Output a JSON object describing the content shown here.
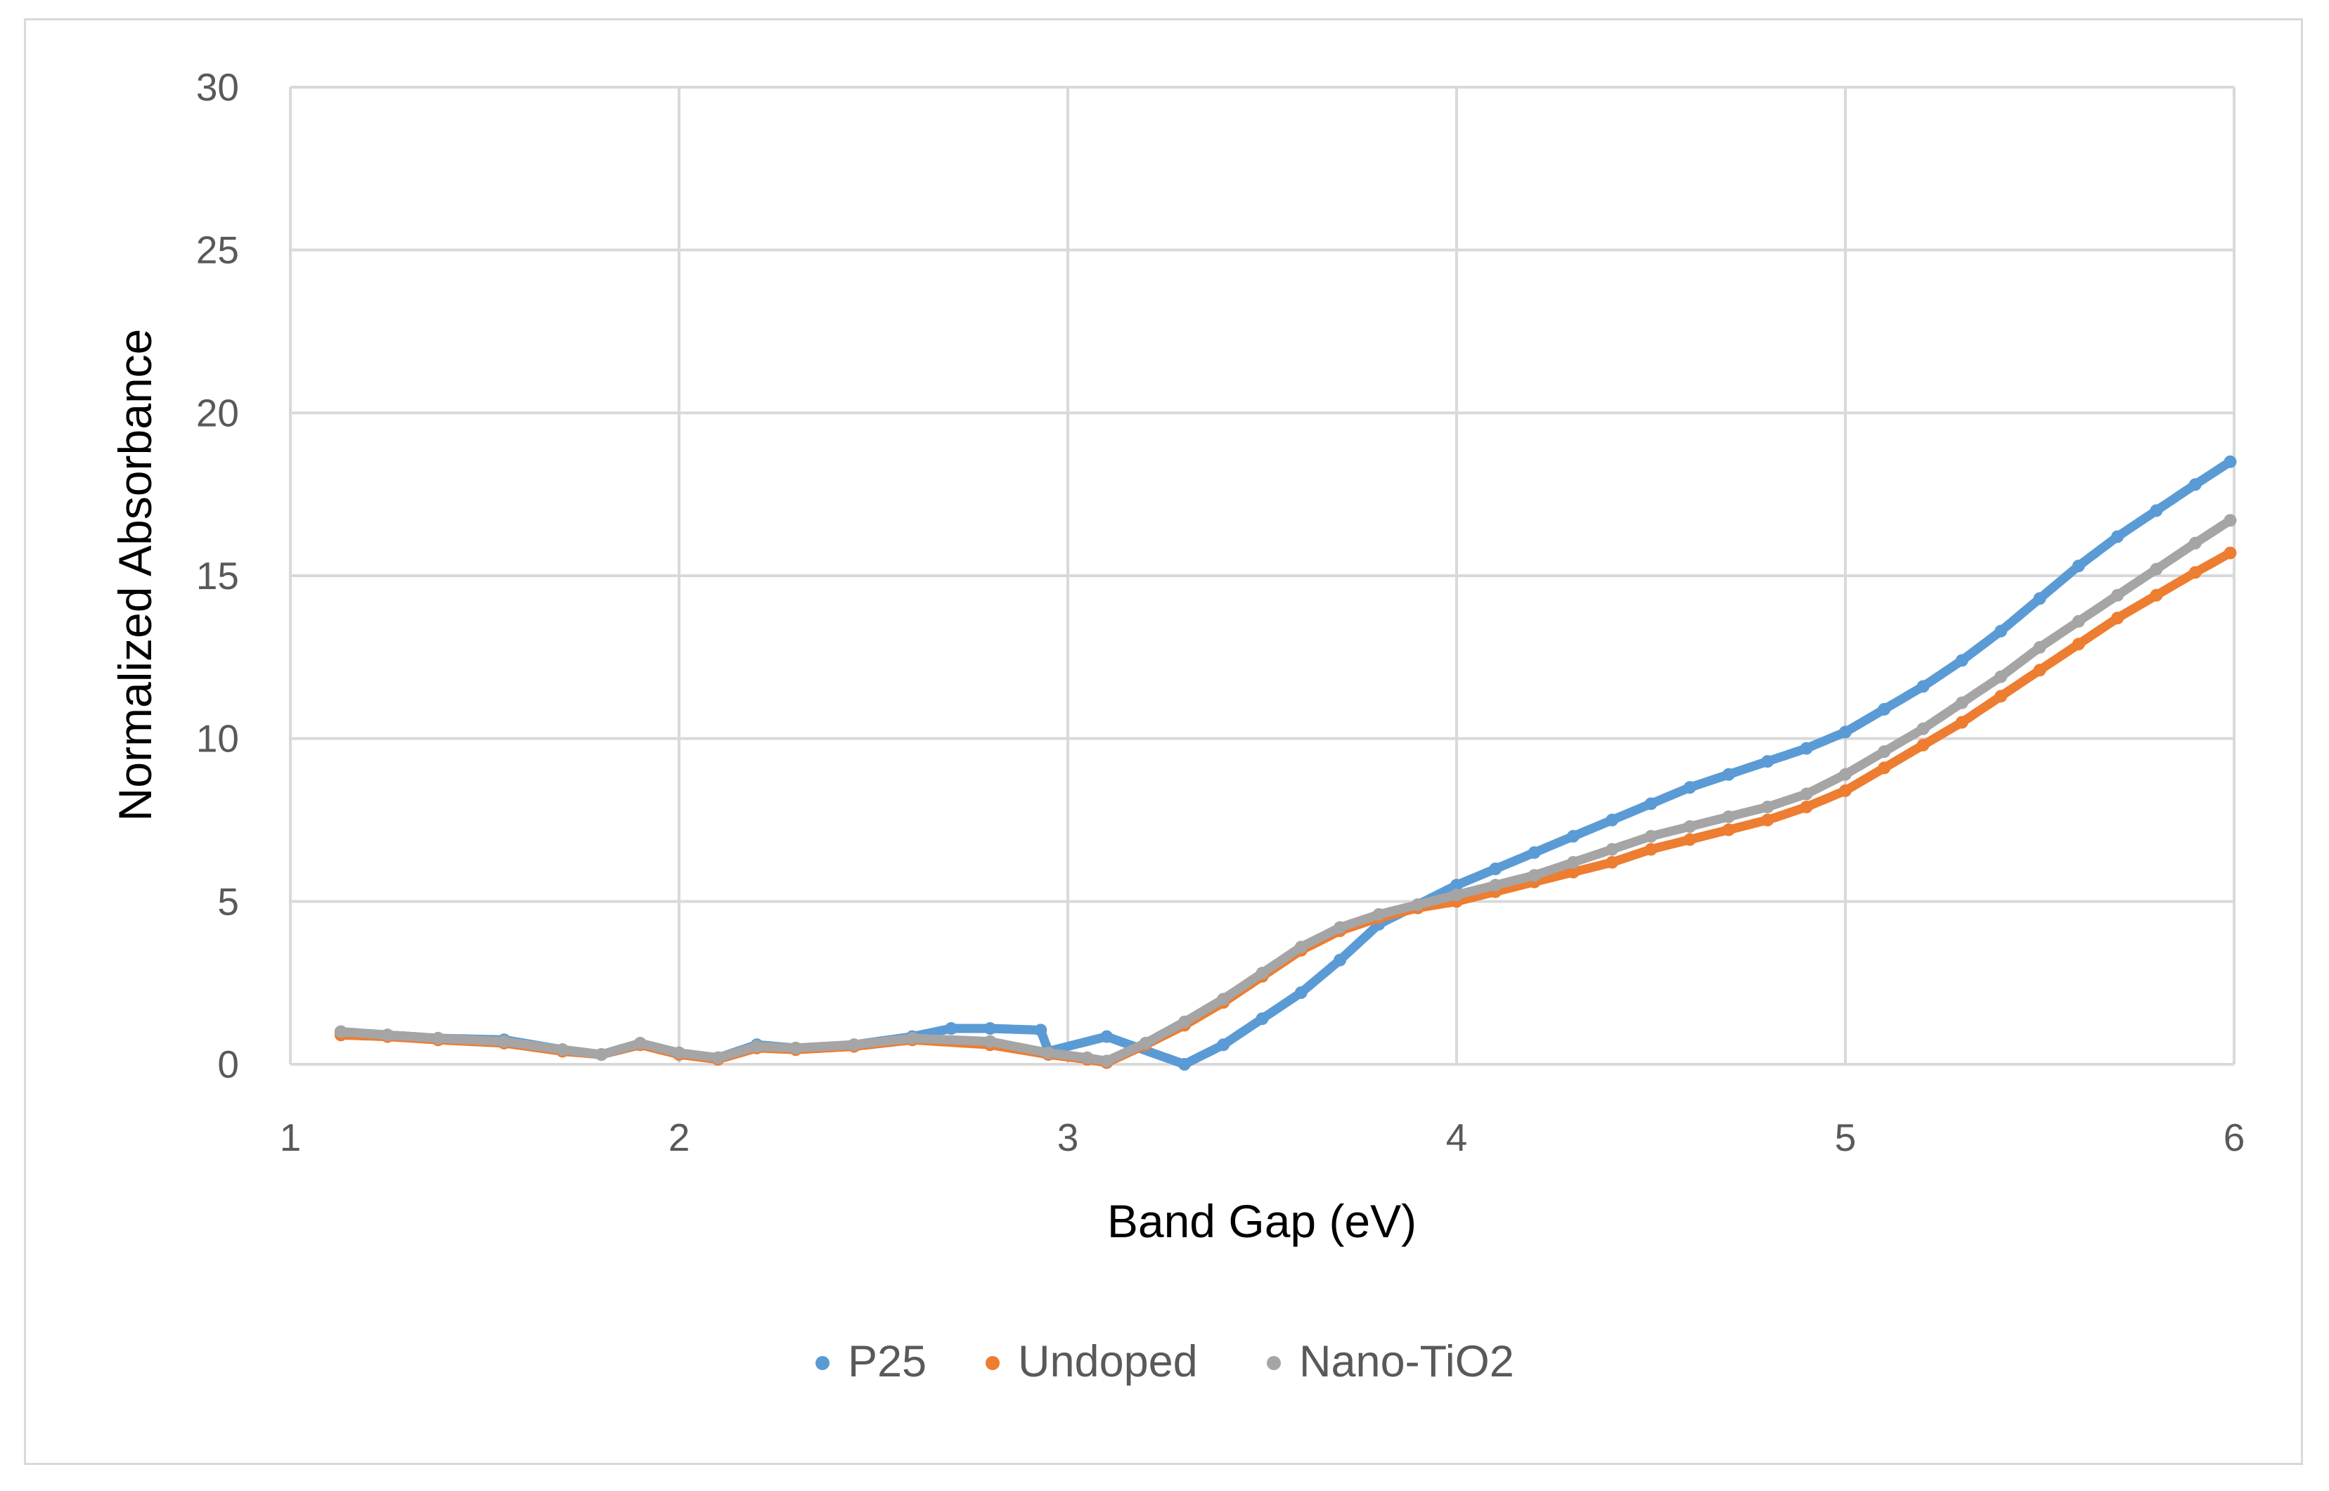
{
  "chart_data": {
    "type": "scatter",
    "title": "",
    "xlabel": "Band Gap (eV)",
    "ylabel": "Normalized Absorbance",
    "xlim": [
      1,
      6
    ],
    "ylim": [
      0,
      30
    ],
    "xticks": [
      "1",
      "2",
      "3",
      "4",
      "5",
      "6"
    ],
    "yticks": [
      "0",
      "5",
      "10",
      "15",
      "20",
      "25",
      "30"
    ],
    "grid": true,
    "legend_position": "bottom",
    "series": [
      {
        "name": "P25",
        "color": "#5B9BD5",
        "x": [
          1.13,
          1.25,
          1.38,
          1.55,
          1.7,
          1.8,
          1.9,
          2.0,
          2.1,
          2.2,
          2.3,
          2.45,
          2.6,
          2.7,
          2.8,
          2.93,
          2.95,
          3.1,
          3.3,
          3.4,
          3.5,
          3.6,
          3.7,
          3.8,
          3.9,
          4.0,
          4.1,
          4.2,
          4.3,
          4.4,
          4.5,
          4.6,
          4.7,
          4.8,
          4.9,
          5.0,
          5.1,
          5.2,
          5.3,
          5.4,
          5.5,
          5.6,
          5.7,
          5.8,
          5.9,
          5.99
        ],
        "y": [
          1.0,
          0.9,
          0.8,
          0.75,
          0.45,
          0.3,
          0.6,
          0.35,
          0.2,
          0.6,
          0.5,
          0.6,
          0.85,
          1.1,
          1.1,
          1.05,
          0.4,
          0.85,
          0.0,
          0.6,
          1.4,
          2.2,
          3.2,
          4.3,
          4.9,
          5.5,
          6.0,
          6.5,
          7.0,
          7.5,
          8.0,
          8.5,
          8.9,
          9.3,
          9.7,
          10.2,
          10.9,
          11.6,
          12.4,
          13.3,
          14.3,
          15.3,
          16.2,
          17.0,
          17.8,
          18.5
        ]
      },
      {
        "name": "Undoped",
        "color": "#ED7D31",
        "x": [
          1.13,
          1.25,
          1.38,
          1.55,
          1.7,
          1.8,
          1.9,
          2.0,
          2.1,
          2.2,
          2.3,
          2.45,
          2.6,
          2.8,
          2.95,
          3.05,
          3.1,
          3.2,
          3.3,
          3.4,
          3.5,
          3.6,
          3.7,
          3.8,
          3.9,
          4.0,
          4.1,
          4.2,
          4.3,
          4.4,
          4.5,
          4.6,
          4.7,
          4.8,
          4.9,
          5.0,
          5.1,
          5.2,
          5.3,
          5.4,
          5.5,
          5.6,
          5.7,
          5.8,
          5.9,
          5.99
        ],
        "y": [
          0.9,
          0.85,
          0.75,
          0.65,
          0.4,
          0.3,
          0.6,
          0.3,
          0.15,
          0.5,
          0.45,
          0.55,
          0.75,
          0.6,
          0.3,
          0.15,
          0.05,
          0.6,
          1.2,
          1.9,
          2.7,
          3.5,
          4.1,
          4.5,
          4.8,
          5.0,
          5.3,
          5.6,
          5.9,
          6.2,
          6.6,
          6.9,
          7.2,
          7.5,
          7.9,
          8.4,
          9.1,
          9.8,
          10.5,
          11.3,
          12.1,
          12.9,
          13.7,
          14.4,
          15.1,
          15.7
        ]
      },
      {
        "name": "Nano-TiO2",
        "color": "#A5A5A5",
        "x": [
          1.13,
          1.25,
          1.38,
          1.55,
          1.7,
          1.8,
          1.9,
          2.0,
          2.1,
          2.2,
          2.3,
          2.45,
          2.6,
          2.8,
          2.95,
          3.05,
          3.1,
          3.2,
          3.3,
          3.4,
          3.5,
          3.6,
          3.7,
          3.8,
          3.9,
          4.0,
          4.1,
          4.2,
          4.3,
          4.4,
          4.5,
          4.6,
          4.7,
          4.8,
          4.9,
          5.0,
          5.1,
          5.2,
          5.3,
          5.4,
          5.5,
          5.6,
          5.7,
          5.8,
          5.9,
          5.99
        ],
        "y": [
          1.0,
          0.9,
          0.8,
          0.7,
          0.45,
          0.3,
          0.65,
          0.35,
          0.2,
          0.55,
          0.5,
          0.6,
          0.8,
          0.7,
          0.35,
          0.2,
          0.1,
          0.65,
          1.3,
          2.0,
          2.8,
          3.6,
          4.2,
          4.6,
          4.9,
          5.2,
          5.5,
          5.8,
          6.2,
          6.6,
          7.0,
          7.3,
          7.6,
          7.9,
          8.3,
          8.9,
          9.6,
          10.3,
          11.1,
          11.9,
          12.8,
          13.6,
          14.4,
          15.2,
          16.0,
          16.7
        ]
      }
    ]
  }
}
